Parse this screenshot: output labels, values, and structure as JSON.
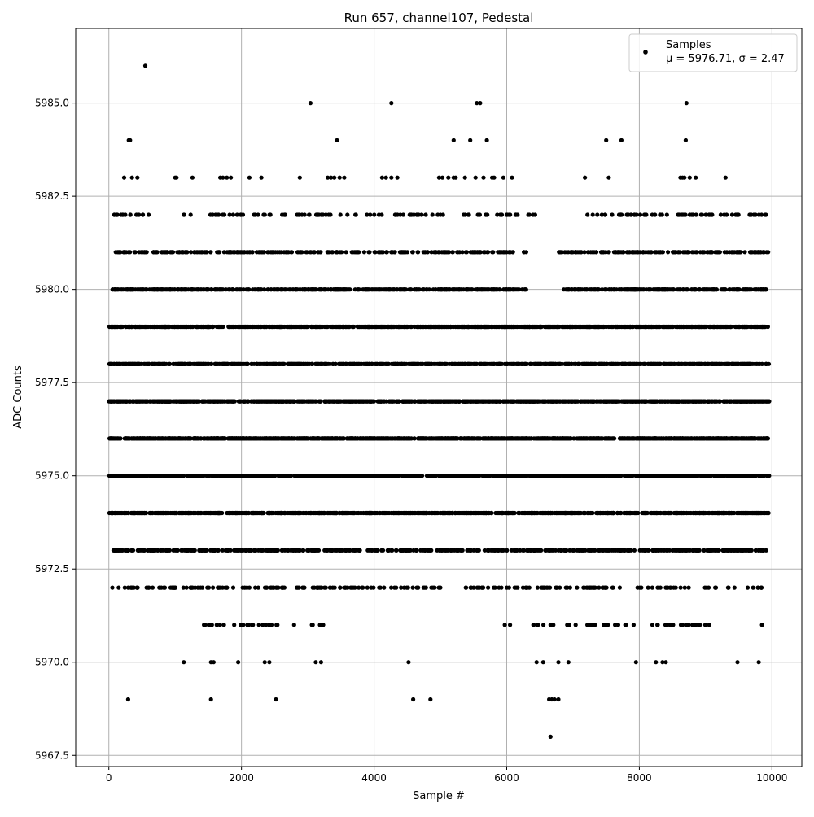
{
  "chart_data": {
    "type": "scatter",
    "title": "Run 657, channel107, Pedestal",
    "xlabel": "Sample #",
    "ylabel": "ADC Counts",
    "xlim": [
      -500,
      10450
    ],
    "ylim": [
      5967.2,
      5987.0
    ],
    "grid": true,
    "legend_position": "top-right",
    "marker_color": "#000000",
    "x_ticks": [
      0,
      2000,
      4000,
      6000,
      8000,
      10000
    ],
    "y_ticks": [
      5967.5,
      5970.0,
      5972.5,
      5975.0,
      5977.5,
      5980.0,
      5982.5,
      5985.0
    ],
    "x_tick_labels": [
      "0",
      "2000",
      "4000",
      "6000",
      "8000",
      "10000"
    ],
    "y_tick_labels": [
      "5967.5",
      "5970.0",
      "5972.5",
      "5975.0",
      "5977.5",
      "5980.0",
      "5982.5",
      "5985.0"
    ],
    "legend": {
      "series_name": "Samples",
      "stats_line": "μ = 5976.71, σ = 2.47"
    },
    "series": [
      {
        "name": "Samples",
        "points": [
          [
            550,
            5986
          ],
          [
            3040,
            5985
          ],
          [
            4260,
            5985
          ],
          [
            5550,
            5985
          ],
          [
            5600,
            5985
          ],
          [
            8710,
            5985
          ],
          [
            300,
            5984
          ],
          [
            320,
            5984
          ],
          [
            3440,
            5984
          ],
          [
            5200,
            5984
          ],
          [
            5450,
            5984
          ],
          [
            5700,
            5984
          ],
          [
            7500,
            5984
          ],
          [
            7730,
            5984
          ],
          [
            8700,
            5984
          ],
          [
            230,
            5983
          ],
          [
            350,
            5983
          ],
          [
            430,
            5983
          ],
          [
            1000,
            5983
          ],
          [
            1020,
            5983
          ],
          [
            1260,
            5983
          ],
          [
            1680,
            5983
          ],
          [
            1720,
            5983
          ],
          [
            1780,
            5983
          ],
          [
            1840,
            5983
          ],
          [
            2120,
            5983
          ],
          [
            2300,
            5983
          ],
          [
            2880,
            5983
          ],
          [
            3300,
            5983
          ],
          [
            3350,
            5983
          ],
          [
            3400,
            5983
          ],
          [
            3480,
            5983
          ],
          [
            3550,
            5983
          ],
          [
            4120,
            5983
          ],
          [
            4180,
            5983
          ],
          [
            4260,
            5983
          ],
          [
            4350,
            5983
          ],
          [
            4980,
            5983
          ],
          [
            5030,
            5983
          ],
          [
            5120,
            5983
          ],
          [
            5200,
            5983
          ],
          [
            5230,
            5983
          ],
          [
            5370,
            5983
          ],
          [
            5530,
            5983
          ],
          [
            5650,
            5983
          ],
          [
            5780,
            5983
          ],
          [
            5810,
            5983
          ],
          [
            5950,
            5983
          ],
          [
            6080,
            5983
          ],
          [
            7180,
            5983
          ],
          [
            7540,
            5983
          ],
          [
            8620,
            5983
          ],
          [
            8650,
            5983
          ],
          [
            8680,
            5983
          ],
          [
            8760,
            5983
          ],
          [
            8850,
            5983
          ],
          [
            9300,
            5983
          ],
          [
            5970,
            5971
          ],
          [
            6050,
            5971
          ],
          [
            7680,
            5971
          ],
          [
            9850,
            5971
          ],
          [
            1130,
            5970
          ],
          [
            1540,
            5970
          ],
          [
            1580,
            5970
          ],
          [
            1950,
            5970
          ],
          [
            2350,
            5970
          ],
          [
            2420,
            5970
          ],
          [
            3120,
            5970
          ],
          [
            3200,
            5970
          ],
          [
            4520,
            5970
          ],
          [
            6450,
            5970
          ],
          [
            6550,
            5970
          ],
          [
            6780,
            5970
          ],
          [
            6930,
            5970
          ],
          [
            7950,
            5970
          ],
          [
            8250,
            5970
          ],
          [
            8350,
            5970
          ],
          [
            8400,
            5970
          ],
          [
            9480,
            5970
          ],
          [
            9800,
            5970
          ],
          [
            290,
            5969
          ],
          [
            1540,
            5969
          ],
          [
            2520,
            5969
          ],
          [
            4590,
            5969
          ],
          [
            4850,
            5969
          ],
          [
            6640,
            5969
          ],
          [
            6680,
            5969
          ],
          [
            6720,
            5969
          ],
          [
            6780,
            5969
          ],
          [
            6660,
            5968
          ]
        ],
        "bands": [
          {
            "y": 5982,
            "count": 190,
            "ranges": [
              [
                50,
                6430
              ],
              [
                7150,
                9950
              ]
            ]
          },
          {
            "y": 5981,
            "count": 430,
            "ranges": [
              [
                80,
                6300
              ],
              [
                6780,
                9950
              ]
            ]
          },
          {
            "y": 5980,
            "count": 640,
            "ranges": [
              [
                20,
                6320
              ],
              [
                6780,
                9950
              ]
            ]
          },
          {
            "y": 5979,
            "count": 960,
            "ranges": [
              [
                0,
                9960
              ]
            ]
          },
          {
            "y": 5978,
            "count": 1100,
            "ranges": [
              [
                0,
                9960
              ]
            ]
          },
          {
            "y": 5977,
            "count": 1100,
            "ranges": [
              [
                0,
                9960
              ]
            ]
          },
          {
            "y": 5976,
            "count": 1100,
            "ranges": [
              [
                0,
                9960
              ]
            ]
          },
          {
            "y": 5975,
            "count": 1020,
            "ranges": [
              [
                0,
                9960
              ]
            ]
          },
          {
            "y": 5974,
            "count": 900,
            "ranges": [
              [
                0,
                9960
              ]
            ]
          },
          {
            "y": 5973,
            "count": 560,
            "ranges": [
              [
                0,
                9960
              ]
            ]
          },
          {
            "y": 5972,
            "count": 230,
            "ranges": [
              [
                50,
                9950
              ]
            ]
          },
          {
            "y": 5971,
            "count": 70,
            "ranges": [
              [
                1400,
                3300
              ],
              [
                6350,
                9200
              ]
            ]
          }
        ]
      }
    ]
  }
}
